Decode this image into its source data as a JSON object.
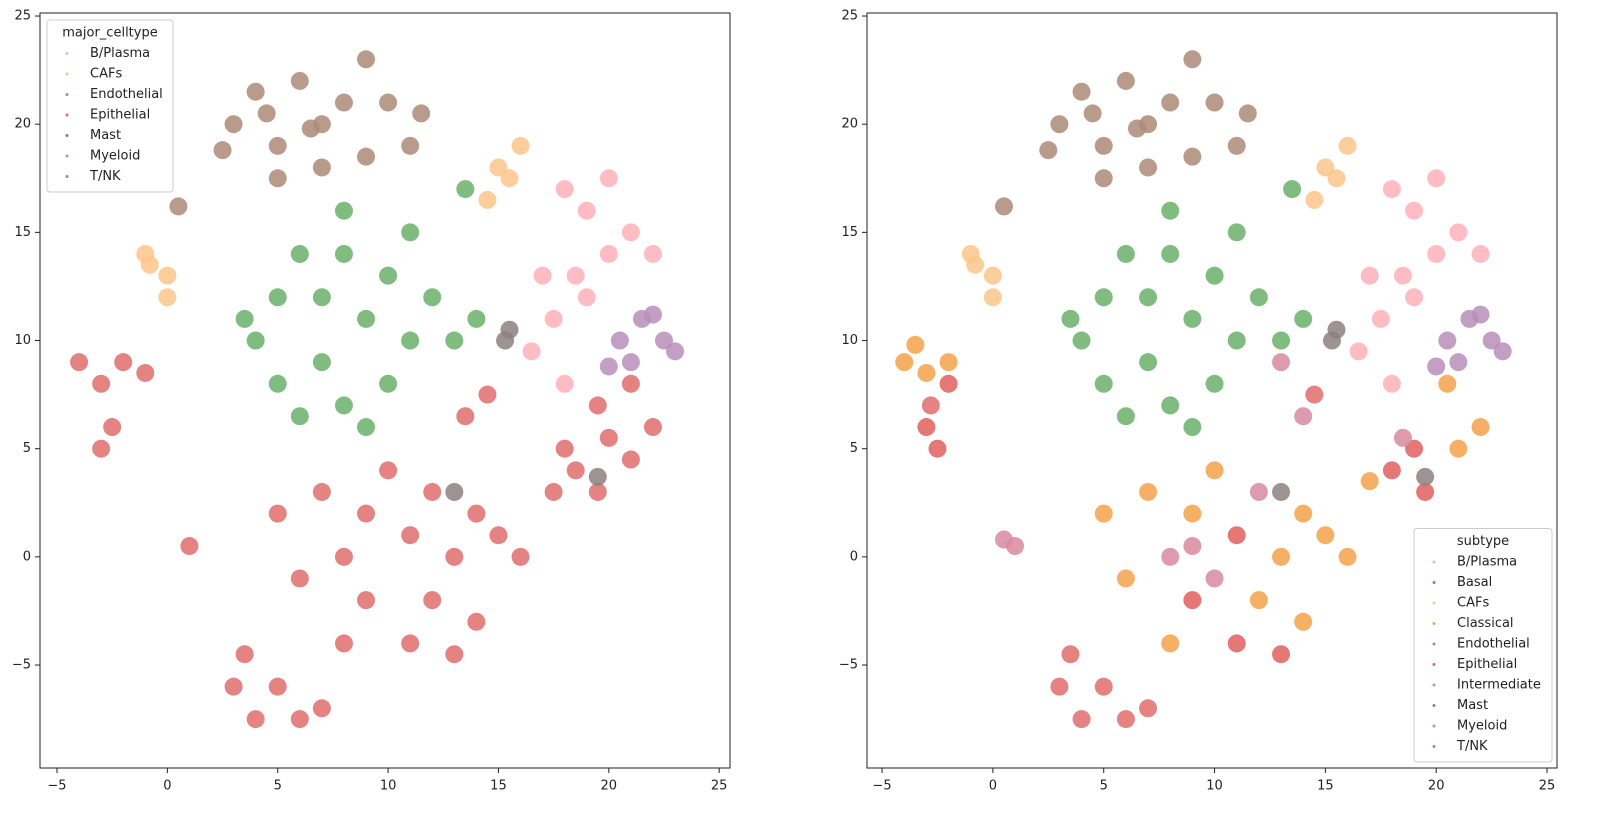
{
  "chart_data": [
    {
      "type": "scatter",
      "legend_title": "major_celltype",
      "legend": "upper left",
      "xlim": [
        -5.77,
        25.49
      ],
      "ylim": [
        -9.76,
        25.14
      ],
      "xticks": [
        {
          "value": -5,
          "label": "−5"
        },
        0,
        5,
        10,
        15,
        20,
        25
      ],
      "yticks": [
        {
          "value": -5,
          "label": "−5"
        },
        0,
        5,
        10,
        15,
        20,
        25
      ],
      "series": [
        {
          "name": "B/Plasma",
          "color": "#ffb0b8",
          "x": [
            18,
            19,
            20,
            21,
            22,
            17,
            18.5,
            20,
            19,
            17.5,
            16.5,
            18
          ],
          "y": [
            17,
            16,
            17.5,
            15,
            14,
            13,
            13,
            14,
            12,
            11,
            9.5,
            8
          ]
        },
        {
          "name": "CAFs",
          "color": "#fdc58a",
          "x": [
            -0.8,
            0,
            -1,
            0,
            15.5,
            16,
            14.5,
            15
          ],
          "y": [
            13.5,
            13,
            14,
            12,
            17.5,
            19,
            16.5,
            18
          ]
        },
        {
          "name": "Endothelial",
          "color": "#6ab06a",
          "x": [
            4,
            5,
            5,
            6,
            7,
            7,
            8,
            8,
            9,
            10,
            10,
            11,
            11,
            12,
            13,
            9,
            6,
            8,
            14,
            3.5,
            13.5
          ],
          "y": [
            10,
            8,
            12,
            14,
            9,
            12,
            16,
            7,
            11,
            13,
            8,
            15,
            10,
            12,
            10,
            6,
            6.5,
            14,
            11,
            11,
            17
          ]
        },
        {
          "name": "Epithelial",
          "color": "#e06c6c",
          "x": [
            -4,
            -3,
            -2.5,
            -3,
            -2,
            -1,
            5,
            6,
            7,
            8,
            9,
            10,
            11,
            12,
            13,
            14,
            15,
            16,
            14,
            11,
            8,
            9,
            12,
            13,
            3,
            4,
            5,
            6,
            7,
            3.5,
            19.5,
            20,
            21,
            22,
            21,
            18,
            17.5,
            18.5,
            19.5,
            14.5,
            13.5,
            1
          ],
          "y": [
            9,
            8,
            6,
            5,
            9,
            8.5,
            2,
            -1,
            3,
            0,
            2,
            4,
            1,
            -2,
            0,
            2,
            1,
            0,
            -3,
            -4,
            -4,
            -2,
            3,
            -4.5,
            -6,
            -7.5,
            -6,
            -7.5,
            -7,
            -4.5,
            7,
            5.5,
            4.5,
            6,
            8,
            5,
            3,
            4,
            3,
            7.5,
            6.5,
            0.5
          ]
        },
        {
          "name": "Mast",
          "color": "#8c8080",
          "x": [
            15.5,
            15.3,
            19.5,
            13
          ],
          "y": [
            10.5,
            10,
            3.7,
            3
          ]
        },
        {
          "name": "Myeloid",
          "color": "#b98eb9",
          "x": [
            20.5,
            21.5,
            22.5,
            23,
            21,
            22,
            20
          ],
          "y": [
            10,
            11,
            10,
            9.5,
            9,
            11.2,
            8.8
          ]
        },
        {
          "name": "T/NK",
          "color": "#ad8a78",
          "x": [
            3,
            4,
            5,
            6,
            7,
            5,
            8,
            9,
            10,
            11,
            9,
            4.5,
            7,
            2.5,
            11.5,
            0.5,
            6.5
          ],
          "y": [
            20,
            21.5,
            19,
            22,
            20,
            17.5,
            21,
            23,
            21,
            19,
            18.5,
            20.5,
            18,
            18.8,
            20.5,
            16.2,
            19.8
          ]
        }
      ]
    },
    {
      "type": "scatter",
      "legend_title": "subtype",
      "legend": "lower right",
      "xlim": [
        -5.68,
        25.45
      ],
      "ylim": [
        -9.76,
        25.14
      ],
      "xticks": [
        {
          "value": -5,
          "label": "−5"
        },
        0,
        5,
        10,
        15,
        20,
        25
      ],
      "yticks": [
        {
          "value": -5,
          "label": "−5"
        },
        0,
        5,
        10,
        15,
        20,
        25
      ],
      "series": [
        {
          "name": "B/Plasma",
          "color": "#ffb0b8",
          "x": [
            18,
            19,
            20,
            21,
            22,
            17,
            18.5,
            20,
            19,
            17.5,
            16.5,
            18
          ],
          "y": [
            17,
            16,
            17.5,
            15,
            14,
            13,
            13,
            14,
            12,
            11,
            9.5,
            8
          ]
        },
        {
          "name": "Basal",
          "color": "#e05f5f",
          "x": [
            -3,
            -2.5,
            -2,
            9,
            11,
            13,
            11,
            19,
            18,
            19.5
          ],
          "y": [
            6,
            5,
            8,
            -2,
            -4,
            -4.5,
            1,
            5,
            4,
            3
          ]
        },
        {
          "name": "CAFs",
          "color": "#fdc58a",
          "x": [
            -0.8,
            0,
            -1,
            0,
            15.5,
            16,
            14.5,
            15
          ],
          "y": [
            13.5,
            13,
            14,
            12,
            17.5,
            19,
            16.5,
            18
          ]
        },
        {
          "name": "Classical",
          "color": "#f4a24a",
          "x": [
            -4,
            -3,
            -2,
            -3.5,
            5,
            7,
            9,
            10,
            14,
            15,
            16,
            14,
            8,
            6,
            12,
            13,
            21,
            22,
            20.5,
            17
          ],
          "y": [
            9,
            8.5,
            9,
            9.8,
            2,
            3,
            2,
            4,
            2,
            1,
            0,
            -3,
            -4,
            -1,
            -2,
            0,
            5,
            6,
            8,
            3.5
          ]
        },
        {
          "name": "Endothelial",
          "color": "#6ab06a",
          "x": [
            4,
            5,
            5,
            6,
            7,
            7,
            8,
            8,
            9,
            10,
            10,
            11,
            11,
            12,
            13,
            9,
            6,
            8,
            14,
            3.5,
            13.5
          ],
          "y": [
            10,
            8,
            12,
            14,
            9,
            12,
            16,
            7,
            11,
            13,
            8,
            15,
            10,
            12,
            10,
            6,
            6.5,
            14,
            11,
            11,
            17
          ]
        },
        {
          "name": "Epithelial",
          "color": "#e06c6c",
          "x": [
            3,
            4,
            5,
            6,
            7,
            3.5,
            14.5,
            -2.8
          ],
          "y": [
            -6,
            -7.5,
            -6,
            -7.5,
            -7,
            -4.5,
            7.5,
            7
          ]
        },
        {
          "name": "Intermediate",
          "color": "#d98aa0",
          "x": [
            1,
            0.5,
            8,
            12,
            10,
            18.5,
            13,
            14,
            9
          ],
          "y": [
            0.5,
            0.8,
            0,
            3,
            -1,
            5.5,
            9,
            6.5,
            0.5
          ]
        },
        {
          "name": "Mast",
          "color": "#8c8080",
          "x": [
            15.5,
            15.3,
            19.5,
            13
          ],
          "y": [
            10.5,
            10,
            3.7,
            3
          ]
        },
        {
          "name": "Myeloid",
          "color": "#b98eb9",
          "x": [
            20.5,
            21.5,
            22.5,
            23,
            21,
            22,
            20
          ],
          "y": [
            10,
            11,
            10,
            9.5,
            9,
            11.2,
            8.8
          ]
        },
        {
          "name": "T/NK",
          "color": "#ad8a78",
          "x": [
            3,
            4,
            5,
            6,
            7,
            5,
            8,
            9,
            10,
            11,
            9,
            4.5,
            7,
            2.5,
            11.5,
            0.5,
            6.5
          ],
          "y": [
            20,
            21.5,
            19,
            22,
            20,
            17.5,
            21,
            23,
            21,
            19,
            18.5,
            20.5,
            18,
            18.8,
            20.5,
            16.2,
            19.8
          ]
        }
      ]
    }
  ]
}
